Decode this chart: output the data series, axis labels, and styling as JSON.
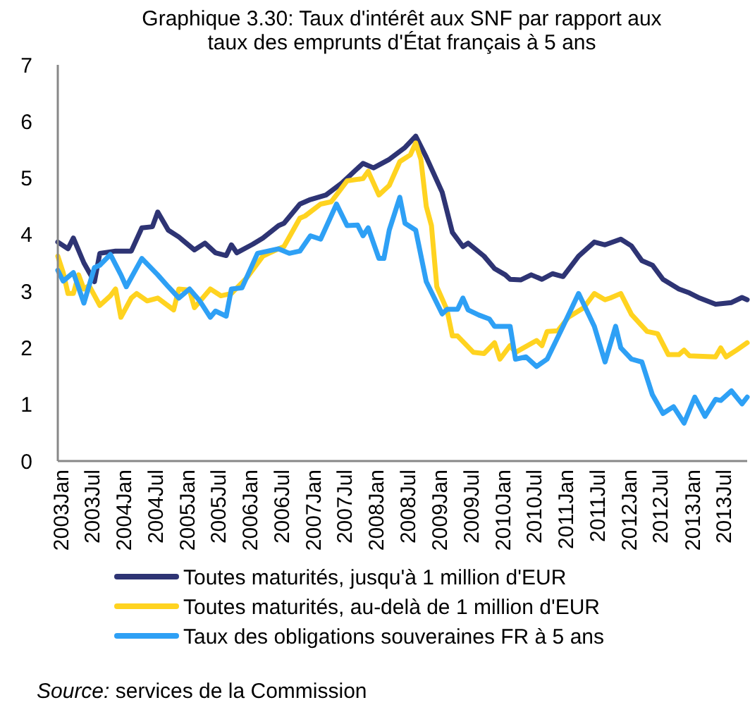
{
  "chart_data": {
    "type": "line",
    "title": "Graphique 3.30: Taux d'intérêt aux SNF par rapport aux taux des emprunts d'État français à 5 ans",
    "annotations": [
      "Source: services de la Commission"
    ],
    "xlim": [
      "2003-01",
      "2013-12"
    ],
    "xticks": [
      {
        "value": "2003-01",
        "label": "2003Jan"
      },
      {
        "value": "2003-07",
        "label": "2003Jul"
      },
      {
        "value": "2004-01",
        "label": "2004Jan"
      },
      {
        "value": "2004-07",
        "label": "2004Jul"
      },
      {
        "value": "2005-01",
        "label": "2005Jan"
      },
      {
        "value": "2005-07",
        "label": "2005Jul"
      },
      {
        "value": "2006-01",
        "label": "2006Jan"
      },
      {
        "value": "2006-07",
        "label": "2006Jul"
      },
      {
        "value": "2007-01",
        "label": "2007Jan"
      },
      {
        "value": "2007-07",
        "label": "2007Jul"
      },
      {
        "value": "2008-01",
        "label": "2008Jan"
      },
      {
        "value": "2008-07",
        "label": "2008Jul"
      },
      {
        "value": "2009-01",
        "label": "2009Jan"
      },
      {
        "value": "2009-07",
        "label": "2009Jul"
      },
      {
        "value": "2010-01",
        "label": "2010Jan"
      },
      {
        "value": "2010-07",
        "label": "2010Jul"
      },
      {
        "value": "2011-01",
        "label": "2011Jan"
      },
      {
        "value": "2011-07",
        "label": "2011Jul"
      },
      {
        "value": "2012-01",
        "label": "2012Jan"
      },
      {
        "value": "2012-07",
        "label": "2012Jul"
      },
      {
        "value": "2013-01",
        "label": "2013Jan"
      },
      {
        "value": "2013-07",
        "label": "2013Jul"
      }
    ],
    "ylim": [
      0,
      7
    ],
    "yticks": [
      0,
      1,
      2,
      3,
      4,
      5,
      6,
      7
    ],
    "grid": false,
    "legend": "bottom",
    "marker": "none",
    "line_style": "solid",
    "series": [
      {
        "name": "Toutes maturités, jusqu'à 1 million d'EUR",
        "color": "#2e3474",
        "x": [
          "2003-01",
          "2003-03",
          "2003-04",
          "2003-06",
          "2003-08",
          "2003-09",
          "2003-12",
          "2004-03",
          "2004-05",
          "2004-07",
          "2004-08",
          "2004-10",
          "2004-12",
          "2005-03",
          "2005-05",
          "2005-07",
          "2005-09",
          "2005-10",
          "2005-11",
          "2006-02",
          "2006-04",
          "2006-07",
          "2006-08",
          "2006-11",
          "2007-01",
          "2007-04",
          "2007-07",
          "2007-11",
          "2008-01",
          "2008-04",
          "2008-07",
          "2008-09",
          "2008-11",
          "2009-02",
          "2009-04",
          "2009-06",
          "2009-07",
          "2009-10",
          "2009-12",
          "2010-02",
          "2010-03",
          "2010-05",
          "2010-07",
          "2010-09",
          "2010-11",
          "2011-01",
          "2011-04",
          "2011-07",
          "2011-09",
          "2011-12",
          "2012-02",
          "2012-04",
          "2012-06",
          "2012-08",
          "2012-11",
          "2013-01",
          "2013-03",
          "2013-06",
          "2013-09",
          "2013-11",
          "2013-12"
        ],
        "values": [
          3.87,
          3.75,
          3.94,
          3.5,
          3.17,
          3.67,
          3.71,
          3.71,
          4.12,
          4.14,
          4.4,
          4.08,
          3.96,
          3.73,
          3.85,
          3.68,
          3.63,
          3.82,
          3.68,
          3.83,
          3.94,
          4.16,
          4.2,
          4.54,
          4.62,
          4.7,
          4.91,
          5.26,
          5.18,
          5.33,
          5.54,
          5.74,
          5.37,
          4.75,
          4.04,
          3.79,
          3.85,
          3.62,
          3.4,
          3.29,
          3.21,
          3.2,
          3.29,
          3.21,
          3.31,
          3.26,
          3.62,
          3.87,
          3.82,
          3.92,
          3.8,
          3.54,
          3.46,
          3.21,
          3.04,
          2.97,
          2.88,
          2.77,
          2.8,
          2.89,
          2.85
        ]
      },
      {
        "name": "Toutes maturités, au-delà de 1 million d'EUR",
        "color": "#ffd320",
        "x": [
          "2003-01",
          "2003-02",
          "2003-03",
          "2003-04",
          "2003-05",
          "2003-06",
          "2003-07",
          "2003-09",
          "2003-11",
          "2003-12",
          "2004-01",
          "2004-03",
          "2004-04",
          "2004-06",
          "2004-08",
          "2004-11",
          "2004-12",
          "2005-02",
          "2005-03",
          "2005-06",
          "2005-08",
          "2005-10",
          "2006-01",
          "2006-04",
          "2006-07",
          "2006-08",
          "2006-11",
          "2006-12",
          "2007-03",
          "2007-05",
          "2007-08",
          "2007-11",
          "2007-12",
          "2008-02",
          "2008-04",
          "2008-06",
          "2008-08",
          "2008-09",
          "2008-10",
          "2008-11",
          "2008-12",
          "2009-01",
          "2009-03",
          "2009-04",
          "2009-05",
          "2009-08",
          "2009-10",
          "2009-12",
          "2010-01",
          "2010-03",
          "2010-04",
          "2010-08",
          "2010-09",
          "2010-10",
          "2010-12",
          "2011-02",
          "2011-05",
          "2011-07",
          "2011-09",
          "2011-10",
          "2011-12",
          "2012-02",
          "2012-05",
          "2012-07",
          "2012-09",
          "2012-11",
          "2012-12",
          "2013-01",
          "2013-06",
          "2013-07",
          "2013-08",
          "2013-10",
          "2013-12"
        ],
        "values": [
          3.62,
          3.33,
          2.96,
          2.96,
          3.29,
          3.04,
          3.1,
          2.75,
          2.92,
          3.04,
          2.54,
          2.88,
          2.96,
          2.83,
          2.88,
          2.67,
          3.04,
          3.02,
          2.71,
          3.04,
          2.92,
          2.96,
          3.25,
          3.62,
          3.75,
          3.79,
          4.29,
          4.33,
          4.54,
          4.58,
          4.95,
          4.99,
          5.12,
          4.7,
          4.87,
          5.29,
          5.41,
          5.62,
          5.33,
          4.5,
          4.16,
          3.08,
          2.67,
          2.21,
          2.21,
          1.92,
          1.9,
          2.09,
          1.8,
          2.04,
          1.92,
          2.13,
          2.04,
          2.29,
          2.3,
          2.54,
          2.71,
          2.96,
          2.85,
          2.88,
          2.96,
          2.59,
          2.29,
          2.25,
          1.88,
          1.88,
          1.96,
          1.86,
          1.84,
          2.0,
          1.84,
          1.96,
          2.09
        ]
      },
      {
        "name": "Taux des obligations souveraines FR à 5 ans",
        "color": "#2ea0f5",
        "x": [
          "2003-01",
          "2003-02",
          "2003-04",
          "2003-06",
          "2003-08",
          "2003-09",
          "2003-11",
          "2004-01",
          "2004-02",
          "2004-05",
          "2004-08",
          "2004-10",
          "2004-12",
          "2005-02",
          "2005-04",
          "2005-06",
          "2005-07",
          "2005-09",
          "2005-10",
          "2005-12",
          "2006-03",
          "2006-07",
          "2006-09",
          "2006-11",
          "2007-01",
          "2007-03",
          "2007-06",
          "2007-08",
          "2007-10",
          "2007-11",
          "2007-12",
          "2008-02",
          "2008-03",
          "2008-04",
          "2008-06",
          "2008-07",
          "2008-09",
          "2008-11",
          "2009-02",
          "2009-03",
          "2009-05",
          "2009-06",
          "2009-07",
          "2009-09",
          "2009-11",
          "2009-12",
          "2010-03",
          "2010-04",
          "2010-06",
          "2010-08",
          "2010-10",
          "2011-01",
          "2011-04",
          "2011-07",
          "2011-09",
          "2011-11",
          "2011-12",
          "2012-02",
          "2012-04",
          "2012-06",
          "2012-08",
          "2012-10",
          "2012-12",
          "2013-02",
          "2013-04",
          "2013-06",
          "2013-07",
          "2013-09",
          "2013-11",
          "2013-12"
        ],
        "values": [
          3.37,
          3.18,
          3.33,
          2.79,
          3.42,
          3.46,
          3.65,
          3.29,
          3.08,
          3.58,
          3.29,
          3.08,
          2.88,
          3.04,
          2.83,
          2.54,
          2.65,
          2.56,
          3.04,
          3.06,
          3.67,
          3.75,
          3.67,
          3.71,
          3.98,
          3.92,
          4.54,
          4.16,
          4.17,
          3.98,
          4.12,
          3.58,
          3.58,
          4.08,
          4.66,
          4.2,
          4.08,
          3.17,
          2.6,
          2.68,
          2.68,
          2.88,
          2.67,
          2.58,
          2.51,
          2.38,
          2.38,
          1.8,
          1.84,
          1.67,
          1.8,
          2.38,
          2.96,
          2.38,
          1.75,
          2.38,
          2.0,
          1.8,
          1.75,
          1.17,
          0.84,
          0.96,
          0.67,
          1.13,
          0.79,
          1.09,
          1.07,
          1.24,
          1.01,
          1.13
        ]
      }
    ]
  }
}
